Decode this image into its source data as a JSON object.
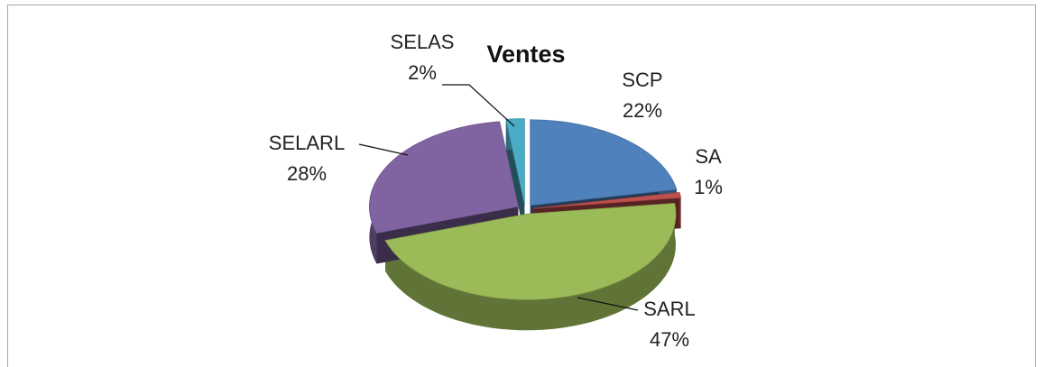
{
  "chart_data": {
    "type": "pie",
    "title": "Ventes",
    "categories": [
      "SCP",
      "SA",
      "SARL",
      "SELARL",
      "SELAS"
    ],
    "values": [
      22,
      1,
      47,
      28,
      2
    ],
    "value_labels": [
      "22%",
      "1%",
      "47%",
      "28%",
      "2%"
    ],
    "colors": [
      "#4f81bd",
      "#c0504d",
      "#9bbb59",
      "#8064a2",
      "#4bacc6"
    ]
  }
}
